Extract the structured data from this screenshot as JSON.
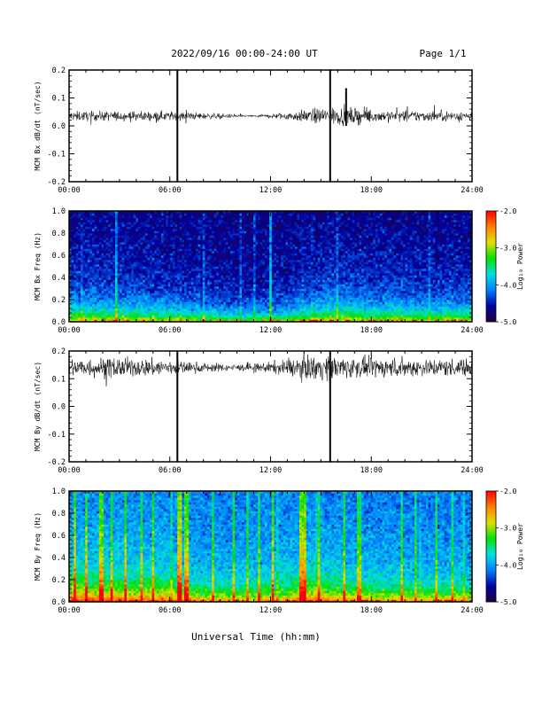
{
  "header": {
    "title": "2022/09/16  00:00-24:00 UT",
    "page": "Page 1/1"
  },
  "footer": {
    "xlabel": "Universal Time (hh:mm)"
  },
  "colorbar": {
    "label": "Log₁₀ Power",
    "ticks": [
      "-2.0",
      "-3.0",
      "-4.0",
      "-5.0"
    ],
    "range": [
      -5.0,
      -2.0
    ],
    "colormap": "rainbow",
    "colors": [
      "#200040",
      "#0000a0",
      "#0080ff",
      "#00e0e0",
      "#00e000",
      "#e0e000",
      "#ff8000",
      "#ff0000"
    ]
  },
  "chart_data": [
    {
      "type": "line",
      "panel": "MCM Bx dB/dt",
      "ylabel": "MCM Bx dB/dt (nT/sec)",
      "xlim": [
        0,
        24
      ],
      "ylim": [
        -0.2,
        0.2
      ],
      "x_ticks": [
        "00:00",
        "06:00",
        "12:00",
        "18:00",
        "24:00"
      ],
      "y_ticks": [
        "0.2",
        "0.1",
        "0.0",
        "-0.1",
        "-0.2"
      ],
      "baseline": 0.035,
      "noise_amplitude_by_hour": [
        0.012,
        0.012,
        0.012,
        0.012,
        0.012,
        0.012,
        0.012,
        0.01,
        0.008,
        0.006,
        0.004,
        0.003,
        0.006,
        0.01,
        0.015,
        0.02,
        0.022,
        0.02,
        0.016,
        0.014,
        0.014,
        0.014,
        0.013,
        0.013
      ],
      "spikes": [
        {
          "x": 6.45,
          "y_min": -0.2,
          "y_max": 0.2
        },
        {
          "x": 15.55,
          "y_min": -0.2,
          "y_max": 0.2
        },
        {
          "x": 16.5,
          "y_min": 0.0,
          "y_max": 0.135
        }
      ],
      "color": "#000000"
    },
    {
      "type": "heatmap",
      "panel": "MCM Bx Freq",
      "ylabel": "MCM Bx Freq (Hz)",
      "xlim": [
        0,
        24
      ],
      "ylim": [
        0.0,
        1.0
      ],
      "x_ticks": [
        "00:00",
        "06:00",
        "12:00",
        "18:00",
        "24:00"
      ],
      "y_ticks": [
        "1.0",
        "0.8",
        "0.6",
        "0.4",
        "0.2",
        "0.0"
      ],
      "zlim": [
        -5.0,
        -2.0
      ],
      "background_log_power": -4.7,
      "low_freq_log_power": -3.3,
      "activity_by_hour": [
        0.55,
        0.55,
        0.5,
        0.55,
        0.5,
        0.45,
        0.45,
        0.4,
        0.3,
        0.25,
        0.2,
        0.2,
        0.25,
        0.3,
        0.45,
        0.55,
        0.6,
        0.55,
        0.5,
        0.5,
        0.5,
        0.45,
        0.45,
        0.45
      ],
      "vertical_lines": [
        {
          "x": 2.8,
          "strength": 0.4
        },
        {
          "x": 12.0,
          "strength": 0.55
        },
        {
          "x": 11.0,
          "strength": 0.25
        }
      ]
    },
    {
      "type": "line",
      "panel": "MCM By dB/dt",
      "ylabel": "MCM By dB/dt (nT/sec)",
      "xlim": [
        0,
        24
      ],
      "ylim": [
        -0.2,
        0.2
      ],
      "x_ticks": [
        "00:00",
        "06:00",
        "12:00",
        "18:00",
        "24:00"
      ],
      "y_ticks": [
        "0.2",
        "0.1",
        "0.0",
        "-0.1",
        "-0.2"
      ],
      "baseline": 0.14,
      "noise_amplitude_by_hour": [
        0.022,
        0.024,
        0.025,
        0.025,
        0.022,
        0.022,
        0.02,
        0.015,
        0.012,
        0.01,
        0.008,
        0.01,
        0.014,
        0.02,
        0.03,
        0.032,
        0.03,
        0.026,
        0.024,
        0.024,
        0.024,
        0.022,
        0.022,
        0.022
      ],
      "spikes": [
        {
          "x": 6.45,
          "y_min": -0.2,
          "y_max": 0.2
        },
        {
          "x": 15.55,
          "y_min": -0.2,
          "y_max": 0.2
        }
      ],
      "color": "#000000"
    },
    {
      "type": "heatmap",
      "panel": "MCM By Freq",
      "ylabel": "MCM By Freq (Hz)",
      "xlim": [
        0,
        24
      ],
      "ylim": [
        0.0,
        1.0
      ],
      "x_ticks": [
        "00:00",
        "06:00",
        "12:00",
        "18:00",
        "24:00"
      ],
      "y_ticks": [
        "1.0",
        "0.8",
        "0.6",
        "0.4",
        "0.2",
        "0.0"
      ],
      "zlim": [
        -5.0,
        -2.0
      ],
      "background_log_power": -4.2,
      "low_freq_log_power": -3.0,
      "activity_by_hour": [
        0.85,
        0.8,
        0.75,
        0.75,
        0.7,
        0.7,
        0.7,
        0.55,
        0.45,
        0.4,
        0.4,
        0.45,
        0.5,
        0.55,
        0.75,
        0.7,
        0.55,
        0.5,
        0.45,
        0.45,
        0.4,
        0.4,
        0.4,
        0.4
      ],
      "vertical_lines": [
        {
          "x": 0.3,
          "strength": 0.8
        },
        {
          "x": 1.0,
          "strength": 0.7
        },
        {
          "x": 1.9,
          "strength": 0.7
        },
        {
          "x": 2.5,
          "strength": 0.6
        },
        {
          "x": 3.4,
          "strength": 0.7
        },
        {
          "x": 4.3,
          "strength": 0.6
        },
        {
          "x": 5.0,
          "strength": 0.6
        },
        {
          "x": 6.6,
          "strength": 0.9
        },
        {
          "x": 7.0,
          "strength": 0.8
        },
        {
          "x": 8.6,
          "strength": 0.6
        },
        {
          "x": 9.8,
          "strength": 0.6
        },
        {
          "x": 10.6,
          "strength": 0.55
        },
        {
          "x": 11.3,
          "strength": 0.6
        },
        {
          "x": 12.1,
          "strength": 0.75
        },
        {
          "x": 13.8,
          "strength": 0.8
        },
        {
          "x": 14.0,
          "strength": 0.8
        },
        {
          "x": 14.9,
          "strength": 0.6
        },
        {
          "x": 16.4,
          "strength": 0.6
        },
        {
          "x": 17.3,
          "strength": 0.6
        },
        {
          "x": 19.8,
          "strength": 0.6
        },
        {
          "x": 20.6,
          "strength": 0.5
        },
        {
          "x": 21.9,
          "strength": 0.55
        },
        {
          "x": 22.8,
          "strength": 0.5
        }
      ]
    }
  ]
}
